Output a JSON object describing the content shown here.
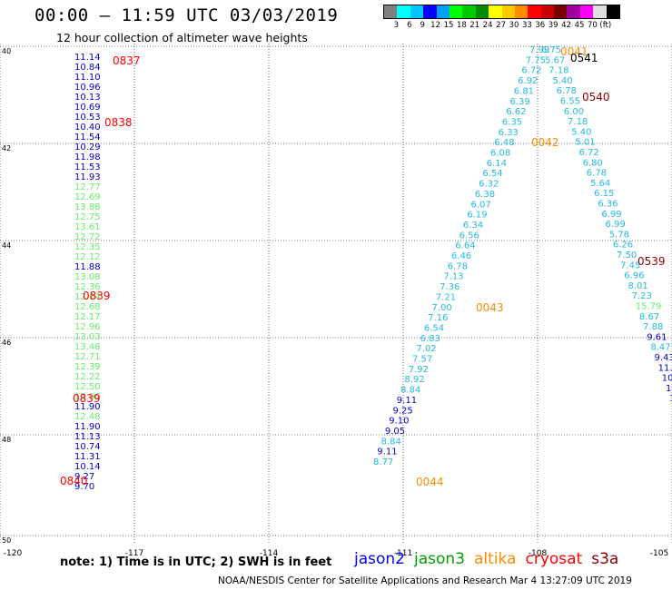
{
  "title": "00:00 — 11:59 UTC 03/03/2019",
  "subtitle": "12 hour collection of altimeter wave heights",
  "colorbar": {
    "colors": [
      "#808080",
      "#00ffff",
      "#00c8ff",
      "#0000ff",
      "#00a0ff",
      "#00ff00",
      "#00c800",
      "#008c00",
      "#ffff00",
      "#ffc800",
      "#ff8c00",
      "#ff0000",
      "#c80000",
      "#780000",
      "#a000a0",
      "#ff00ff",
      "#e0e0e0",
      "#000000"
    ],
    "labels": [
      "3",
      "6",
      "9",
      "12",
      "15",
      "18",
      "21",
      "24",
      "27",
      "30",
      "33",
      "36",
      "39",
      "42",
      "45",
      "70",
      "(ft)"
    ]
  },
  "axes": {
    "x_ticks": [
      "-120",
      "-117",
      "-114",
      "-111",
      "-108",
      "-105"
    ],
    "y_ticks": [
      "40",
      "42",
      "44",
      "46",
      "48",
      "50"
    ]
  },
  "note": "note: 1) Time is in UTC; 2) SWH is in feet",
  "satellites": [
    {
      "name": "jason2",
      "color": "#0000ff"
    },
    {
      "name": "jason3",
      "color": "#00a000"
    },
    {
      "name": "altika",
      "color": "#ff8c00"
    },
    {
      "name": "cryosat",
      "color": "#ff0000"
    },
    {
      "name": "s3a",
      "color": "#8b0000"
    }
  ],
  "footer": "NOAA/NESDIS Center for Satellite Applications and Research    Mar 4 13:27:09 UTC 2019",
  "tracks": [
    {
      "x0": 82,
      "y0": 66,
      "dx": 0,
      "dy": 11,
      "size": 10,
      "values": [
        "11.14",
        "10.84",
        "11.10",
        "10.96",
        "10.13",
        "10.69",
        "10.53",
        "10.40",
        "11.54",
        "10.29",
        "11.98",
        "11.53",
        "11.93",
        "12.77",
        "12.69",
        "13.88",
        "12.75",
        "13.61",
        "12.72",
        "12.35",
        "12.12",
        "11.88",
        "13.08",
        "12.36",
        "12.64",
        "12.68",
        "12.17",
        "12.96",
        "13.03",
        "13.48",
        "12.71",
        "12.39",
        "12.22",
        "12.50",
        "12.96",
        "11.90",
        "12.48",
        "11.90",
        "11.13",
        "10.74",
        "11.31",
        "10.14",
        "9.27",
        "9.70"
      ],
      "colors": [
        "#0000cc",
        "#0000cc",
        "#0000cc",
        "#0000cc",
        "#0000cc",
        "#0000cc",
        "#0000cc",
        "#0000cc",
        "#0000cc",
        "#0000cc",
        "#0000cc",
        "#0000cc",
        "#0000cc",
        "#66ee66",
        "#66ee66",
        "#66ee66",
        "#66ee66",
        "#66ee66",
        "#66ee66",
        "#66ee66",
        "#66ee66",
        "#0000cc",
        "#66ee66",
        "#66ee66",
        "#66ee66",
        "#66ee66",
        "#66ee66",
        "#66ee66",
        "#66ee66",
        "#66ee66",
        "#66ee66",
        "#66ee66",
        "#66ee66",
        "#66ee66",
        "#66ee66",
        "#0000cc",
        "#66ee66",
        "#0000cc",
        "#0000cc",
        "#0000cc",
        "#0000cc",
        "#0000cc",
        "#0000cc",
        "#0000cc"
      ]
    },
    {
      "x0": 583,
      "y0": 58,
      "dx": -4.3,
      "dy": 11.35,
      "size": 10,
      "color": "#22bbdd",
      "values": [
        "7.99",
        "7.75",
        "6.72",
        "6.92",
        "6.81",
        "6.39",
        "6.62",
        "6.35",
        "6.33",
        "6.48",
        "6.08",
        "6.14",
        "6.54",
        "6.32",
        "6.38",
        "6.07",
        "6.19",
        "6.34",
        "6.56",
        "6.64",
        "6.46",
        "6.78",
        "7.13",
        "7.36",
        "7.21",
        "7.00",
        "7.16",
        "6.54",
        "6.83",
        "7.02",
        "7.57",
        "7.92",
        "8.92",
        "8.84",
        "9.11",
        "9.25",
        "9.10",
        "9.05",
        "8.84",
        "9.11",
        "8.77"
      ],
      "colors": [
        "#22bbdd",
        "#22bbdd",
        "#22bbdd",
        "#22bbdd",
        "#22bbdd",
        "#22bbdd",
        "#22bbdd",
        "#22bbdd",
        "#22bbdd",
        "#22bbdd",
        "#22bbdd",
        "#22bbdd",
        "#22bbdd",
        "#22bbdd",
        "#22bbdd",
        "#22bbdd",
        "#22bbdd",
        "#22bbdd",
        "#22bbdd",
        "#22bbdd",
        "#22bbdd",
        "#22bbdd",
        "#22bbdd",
        "#22bbdd",
        "#22bbdd",
        "#22bbdd",
        "#22bbdd",
        "#22bbdd",
        "#22bbdd",
        "#22bbdd",
        "#22bbdd",
        "#22bbdd",
        "#22bbdd",
        "#22bbdd",
        "#0000cc",
        "#0000cc",
        "#0000cc",
        "#0000cc",
        "#22bbdd",
        "#0000cc",
        "#22bbdd"
      ]
    },
    {
      "x0": 596,
      "y0": 58,
      "dx": 4.15,
      "dy": 11.3,
      "size": 10,
      "color": "#22bbdd",
      "values": [
        "6.75",
        "5.67",
        "7.18",
        "5.40",
        "6.78",
        "6.55",
        "6.00",
        "7.18",
        "5.40",
        "5.01",
        "6.72",
        "6.80",
        "6.78",
        "5.64",
        "6.15",
        "6.36",
        "6.99",
        "6.99",
        "5.78",
        "6.26",
        "7.50",
        "7.45",
        "6.96",
        "8.01",
        "7.23",
        "15.79",
        "8.67",
        "7.88",
        "9.61",
        "8.47",
        "9.43",
        "11.62",
        "10.0",
        "11.",
        "1"
      ],
      "colors": [
        "#22bbdd",
        "#22bbdd",
        "#22bbdd",
        "#22bbdd",
        "#22bbdd",
        "#22bbdd",
        "#22bbdd",
        "#22bbdd",
        "#22bbdd",
        "#22bbdd",
        "#22bbdd",
        "#22bbdd",
        "#22bbdd",
        "#22bbdd",
        "#22bbdd",
        "#22bbdd",
        "#22bbdd",
        "#22bbdd",
        "#22bbdd",
        "#22bbdd",
        "#22bbdd",
        "#22bbdd",
        "#22bbdd",
        "#22bbdd",
        "#22bbdd",
        "#66ee66",
        "#22bbdd",
        "#22bbdd",
        "#0000cc",
        "#22bbdd",
        "#0000cc",
        "#0000cc",
        "#0000cc",
        "#0000cc",
        "#0000cc"
      ]
    }
  ],
  "time_labels": [
    {
      "text": "0837",
      "color": "#ff0000"
    },
    {
      "text": "0838",
      "color": "#ff0000"
    },
    {
      "text": "0839",
      "color": "#ff0000"
    },
    {
      "text": "0839",
      "color": "#ff0000"
    },
    {
      "text": "0840",
      "color": "#ff0000"
    },
    {
      "text": "0041",
      "color": "#ff8c00"
    },
    {
      "text": "0541",
      "color": "#000000"
    },
    {
      "text": "0540",
      "color": "#8b0000"
    },
    {
      "text": "0042",
      "color": "#ff8c00"
    },
    {
      "text": "0539",
      "color": "#8b0000"
    },
    {
      "text": "0043",
      "color": "#ff8c00"
    },
    {
      "text": "0044",
      "color": "#ff8c00"
    }
  ]
}
